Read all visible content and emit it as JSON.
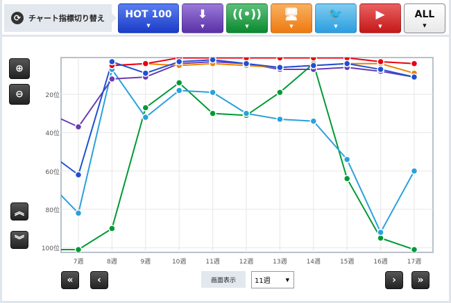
{
  "toolbar": {
    "switch_label": "チャート指標切り替え",
    "buttons": [
      {
        "id": "hot100",
        "label": "HOT 100",
        "icon": "hot100-text",
        "color": "#2244cc"
      },
      {
        "id": "download",
        "label": "",
        "icon": "download-cd-icon",
        "color": "#6a3cb4"
      },
      {
        "id": "streaming",
        "label": "",
        "icon": "streaming-icon",
        "color": "#0e9a3a"
      },
      {
        "id": "radio",
        "label": "",
        "icon": "radio-pc-icon",
        "color": "#f08300"
      },
      {
        "id": "twitter",
        "label": "",
        "icon": "twitter-icon",
        "color": "#3aa8e0"
      },
      {
        "id": "youtube",
        "label": "",
        "icon": "youtube-icon",
        "color": "#d42020"
      },
      {
        "id": "all",
        "label": "ALL",
        "icon": "",
        "color": "#ffffff"
      }
    ]
  },
  "controls": {
    "display_label": "画面表示",
    "display_value": "11週",
    "zoom_in": "zoom-in-icon",
    "zoom_out": "zoom-out-icon",
    "scroll_up": "double-chevron-up-icon",
    "scroll_down": "double-chevron-down-icon",
    "first": "«",
    "prev": "‹",
    "next": "›",
    "last": "»"
  },
  "chart_data": {
    "type": "line",
    "y_inverted": true,
    "ylim": [
      1,
      102
    ],
    "y_ticks": [
      "20位",
      "40位",
      "60位",
      "80位",
      "100位"
    ],
    "y_tick_values": [
      20,
      40,
      60,
      80,
      100
    ],
    "categories": [
      "7週",
      "8週",
      "9週",
      "10週",
      "11週",
      "12週",
      "13週",
      "14週",
      "15週",
      "16週",
      "17週"
    ],
    "x_range": [
      "6.5週",
      "17.5週"
    ],
    "grid": true,
    "series": [
      {
        "color": "#009933",
        "prev": 101,
        "values": [
          101,
          90,
          27,
          14,
          30,
          31,
          19,
          4,
          64,
          95,
          101
        ]
      },
      {
        "color": "#2aa0dc",
        "prev": 64,
        "values": [
          82,
          7,
          32,
          18,
          19,
          30,
          33,
          34,
          54,
          92,
          60
        ]
      },
      {
        "color": "#6a3cb4",
        "prev": 29,
        "values": [
          37,
          12,
          11,
          4,
          3,
          4,
          7,
          7,
          6,
          8,
          11
        ]
      },
      {
        "color": "#f08300",
        "prev": null,
        "values": [
          null,
          5,
          4,
          5,
          4,
          5,
          6,
          5,
          4,
          4,
          9
        ]
      },
      {
        "color": "#e60012",
        "prev": null,
        "values": [
          null,
          5,
          4,
          1,
          1,
          1,
          1,
          1,
          1,
          3,
          4
        ]
      },
      {
        "color": "#1e50d2",
        "prev": 49,
        "values": [
          62,
          3,
          9,
          3,
          2,
          4,
          6,
          5,
          4,
          7,
          11
        ]
      }
    ]
  }
}
